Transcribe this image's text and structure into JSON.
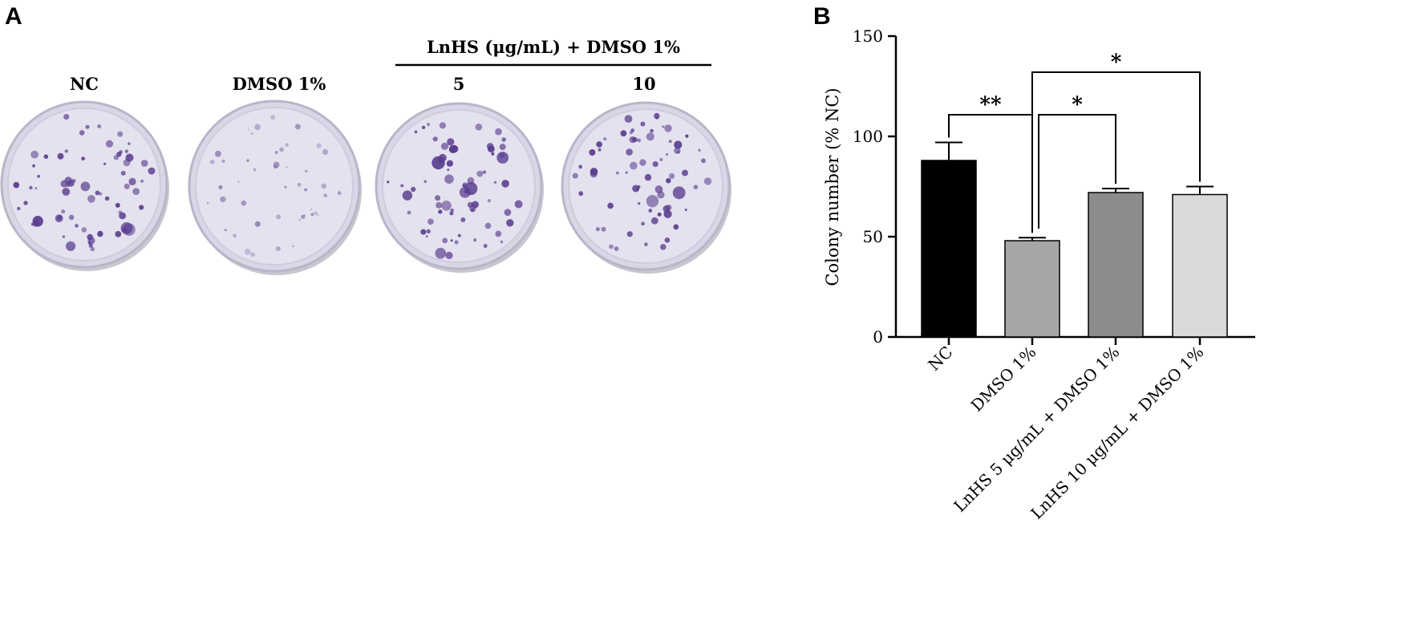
{
  "panel_a": {
    "letter": "A",
    "group_label": "LnHS (μg/mL) + DMSO 1%",
    "plates": [
      {
        "label": "NC",
        "colony_density": "high"
      },
      {
        "label": "DMSO 1%",
        "colony_density": "low"
      },
      {
        "label": "5",
        "colony_density": "high"
      },
      {
        "label": "10",
        "colony_density": "high"
      }
    ],
    "colors": {
      "stain": "#5a3d8f",
      "plate": "#d9d6e6"
    }
  },
  "panel_b": {
    "letter": "B"
  },
  "chart_data": {
    "type": "bar",
    "title": "",
    "xlabel": "",
    "ylabel": "Colony number (% NC)",
    "ylim": [
      0,
      150
    ],
    "yticks": [
      0,
      50,
      100,
      150
    ],
    "categories": [
      "NC",
      "DMSO 1%",
      "LnHS 5 μg/mL + DMSO 1%",
      "LnHS 10 μg/mL + DMSO 1%"
    ],
    "values": [
      88,
      48,
      72,
      71
    ],
    "errors": [
      9,
      1.5,
      2,
      4
    ],
    "colors": [
      "#000000",
      "#a6a6a6",
      "#8c8c8c",
      "#d9d9d9"
    ],
    "grid": false,
    "significance": [
      {
        "from": 0,
        "to": 1,
        "label": "**"
      },
      {
        "from": 1,
        "to": 2,
        "label": "*"
      },
      {
        "from": 1,
        "to": 3,
        "label": "*"
      }
    ]
  }
}
